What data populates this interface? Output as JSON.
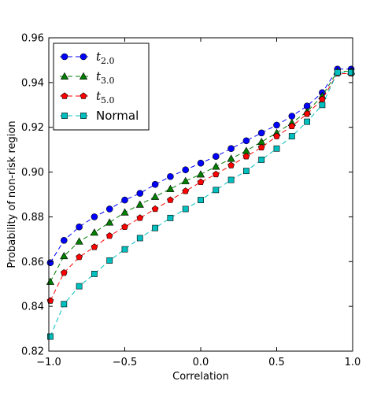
{
  "chart_data": {
    "type": "line",
    "title": "",
    "xlabel": "Correlation",
    "ylabel": "Probability of non-risk region",
    "xlim": [
      -1.0,
      1.0
    ],
    "ylim": [
      0.82,
      0.96
    ],
    "xticks": [
      -1.0,
      -0.5,
      0.0,
      0.5,
      1.0
    ],
    "xtick_labels": [
      "−1.0",
      "−0.5",
      "0.0",
      "0.5",
      "1.0"
    ],
    "yticks": [
      0.82,
      0.84,
      0.86,
      0.88,
      0.9,
      0.92,
      0.94,
      0.96
    ],
    "ytick_labels": [
      "0.82",
      "0.84",
      "0.86",
      "0.88",
      "0.90",
      "0.92",
      "0.94",
      "0.96"
    ],
    "grid": false,
    "legend_position": "top-left",
    "x": [
      -0.99,
      -0.9,
      -0.8,
      -0.7,
      -0.6,
      -0.5,
      -0.4,
      -0.3,
      -0.2,
      -0.1,
      0.0,
      0.1,
      0.2,
      0.3,
      0.4,
      0.5,
      0.6,
      0.7,
      0.8,
      0.9,
      0.99
    ],
    "series": [
      {
        "name": "t_{2.0}",
        "label_main": "t",
        "label_sub": "2.0",
        "color": "#0000ff",
        "marker": "circle",
        "values": [
          0.8595,
          0.8695,
          0.8755,
          0.88,
          0.8835,
          0.8875,
          0.8905,
          0.8945,
          0.898,
          0.901,
          0.904,
          0.907,
          0.9105,
          0.914,
          0.9175,
          0.921,
          0.925,
          0.9295,
          0.9355,
          0.946,
          0.946
        ]
      },
      {
        "name": "t_{3.0}",
        "label_main": "t",
        "label_sub": "3.0",
        "color": "#007f00",
        "marker": "triangle",
        "values": [
          0.851,
          0.8625,
          0.869,
          0.873,
          0.8775,
          0.882,
          0.8855,
          0.889,
          0.8925,
          0.896,
          0.899,
          0.9025,
          0.906,
          0.9095,
          0.9135,
          0.9175,
          0.922,
          0.927,
          0.934,
          0.945,
          0.945
        ]
      },
      {
        "name": "t_{5.0}",
        "label_main": "t",
        "label_sub": "5.0",
        "color": "#ff0000",
        "marker": "pentagon",
        "values": [
          0.8425,
          0.855,
          0.862,
          0.8665,
          0.8715,
          0.8755,
          0.8795,
          0.8835,
          0.8875,
          0.8915,
          0.8955,
          0.899,
          0.903,
          0.907,
          0.911,
          0.916,
          0.9205,
          0.926,
          0.9325,
          0.944,
          0.944
        ]
      },
      {
        "name": "Normal",
        "label_main": "Normal",
        "label_sub": "",
        "color": "#00bfbf",
        "marker": "square",
        "values": [
          0.8265,
          0.841,
          0.849,
          0.8545,
          0.8605,
          0.8655,
          0.8705,
          0.875,
          0.8795,
          0.8835,
          0.8875,
          0.892,
          0.8965,
          0.9005,
          0.9055,
          0.9105,
          0.916,
          0.9225,
          0.93,
          0.9445,
          0.9445
        ]
      }
    ]
  }
}
